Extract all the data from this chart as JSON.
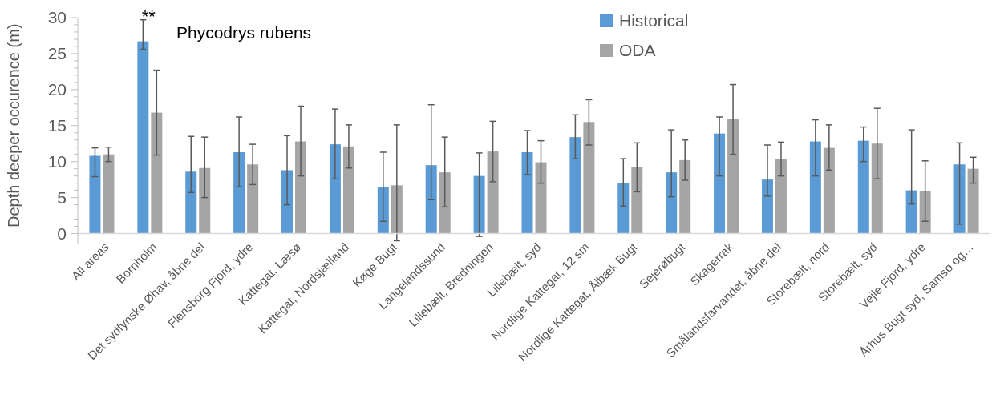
{
  "chart_data": {
    "type": "bar",
    "title": "Phycodrys rubens",
    "ylabel": "Depth deeper occurence (m)",
    "categories": [
      "All areas",
      "Bornholm",
      "Det sydfynske Øhav, åbne del",
      "Flensborg Fjord, ydre",
      "Kattegat, Læsø",
      "Kattegat, Nordsjælland",
      "Køge Bugt",
      "Langelandssund",
      "Lillebælt, Bredningen",
      "Lillebælt, syd",
      "Nordlige Kattegat, 12 sm",
      "Nordlige Kattegat, Ålbæk Bugt",
      "Sejerøbugt",
      "Skagerrak",
      "Smålandsfarvandet, åbne del",
      "Storebælt, nord",
      "Storebælt, syd",
      "Vejle Fjord, ydre",
      "Århus Bugt syd, Samsø og…"
    ],
    "series": [
      {
        "name": "Historical",
        "color": "#5b9bd5",
        "values": [
          10.8,
          26.7,
          8.6,
          11.3,
          8.8,
          12.4,
          6.5,
          9.5,
          8.0,
          11.3,
          13.4,
          7.0,
          8.5,
          13.9,
          7.5,
          12.8,
          12.9,
          6.0,
          9.6
        ],
        "errors": [
          [
            7.9,
            11.9
          ],
          [
            25.6,
            29.7
          ],
          [
            5.7,
            13.5
          ],
          [
            6.5,
            16.2
          ],
          [
            4.0,
            13.6
          ],
          [
            7.6,
            17.3
          ],
          [
            1.7,
            11.3
          ],
          [
            4.7,
            17.9
          ],
          [
            -0.4,
            11.2
          ],
          [
            8.2,
            14.3
          ],
          [
            10.4,
            16.5
          ],
          [
            3.8,
            10.4
          ],
          [
            5.1,
            14.4
          ],
          [
            8.0,
            16.2
          ],
          [
            5.2,
            12.3
          ],
          [
            8.0,
            15.8
          ],
          [
            10.0,
            14.8
          ],
          [
            4.1,
            14.4
          ],
          [
            1.3,
            12.6
          ]
        ]
      },
      {
        "name": "ODA",
        "color": "#a5a5a5",
        "values": [
          11.0,
          16.8,
          9.1,
          9.6,
          12.8,
          12.1,
          6.7,
          8.5,
          11.4,
          9.9,
          15.5,
          9.2,
          10.2,
          15.9,
          10.4,
          11.9,
          12.5,
          5.9,
          9.0
        ],
        "errors": [
          [
            10.0,
            12.0
          ],
          [
            10.9,
            22.7
          ],
          [
            5.0,
            13.4
          ],
          [
            6.8,
            12.4
          ],
          [
            8.0,
            17.7
          ],
          [
            9.1,
            15.1
          ],
          [
            -1.0,
            15.1
          ],
          [
            3.7,
            13.4
          ],
          [
            7.2,
            15.6
          ],
          [
            7.0,
            12.9
          ],
          [
            12.3,
            18.6
          ],
          [
            5.8,
            12.6
          ],
          [
            7.4,
            13.0
          ],
          [
            11.0,
            20.7
          ],
          [
            8.0,
            12.7
          ],
          [
            8.8,
            15.1
          ],
          [
            7.6,
            17.4
          ],
          [
            1.7,
            10.1
          ],
          [
            7.0,
            10.6
          ]
        ]
      }
    ],
    "ylim": [
      -1.5,
      30
    ],
    "yticks": [
      0,
      {
        "value": 1,
        "label": null
      },
      {
        "value": 2,
        "label": null
      },
      {
        "value": 3,
        "label": null
      },
      {
        "value": 4,
        "label": null
      },
      5,
      {
        "value": 6,
        "label": null
      },
      {
        "value": 7,
        "label": null
      },
      {
        "value": 8,
        "label": null
      },
      {
        "value": 9,
        "label": null
      },
      10,
      {
        "value": 11,
        "label": null
      },
      {
        "value": 12,
        "label": null
      },
      {
        "value": 13,
        "label": null
      },
      {
        "value": 14,
        "label": null
      },
      15,
      {
        "value": 16,
        "label": null
      },
      {
        "value": 17,
        "label": null
      },
      {
        "value": 18,
        "label": null
      },
      {
        "value": 19,
        "label": null
      },
      20,
      {
        "value": 21,
        "label": null
      },
      {
        "value": 22,
        "label": null
      },
      {
        "value": 23,
        "label": null
      },
      {
        "value": 24,
        "label": null
      },
      25,
      {
        "value": 26,
        "label": null
      },
      {
        "value": 27,
        "label": null
      },
      {
        "value": 28,
        "label": null
      },
      {
        "value": 29,
        "label": null
      },
      30
    ],
    "annotations": [
      "**"
    ],
    "legend": "top right",
    "grid": false
  }
}
